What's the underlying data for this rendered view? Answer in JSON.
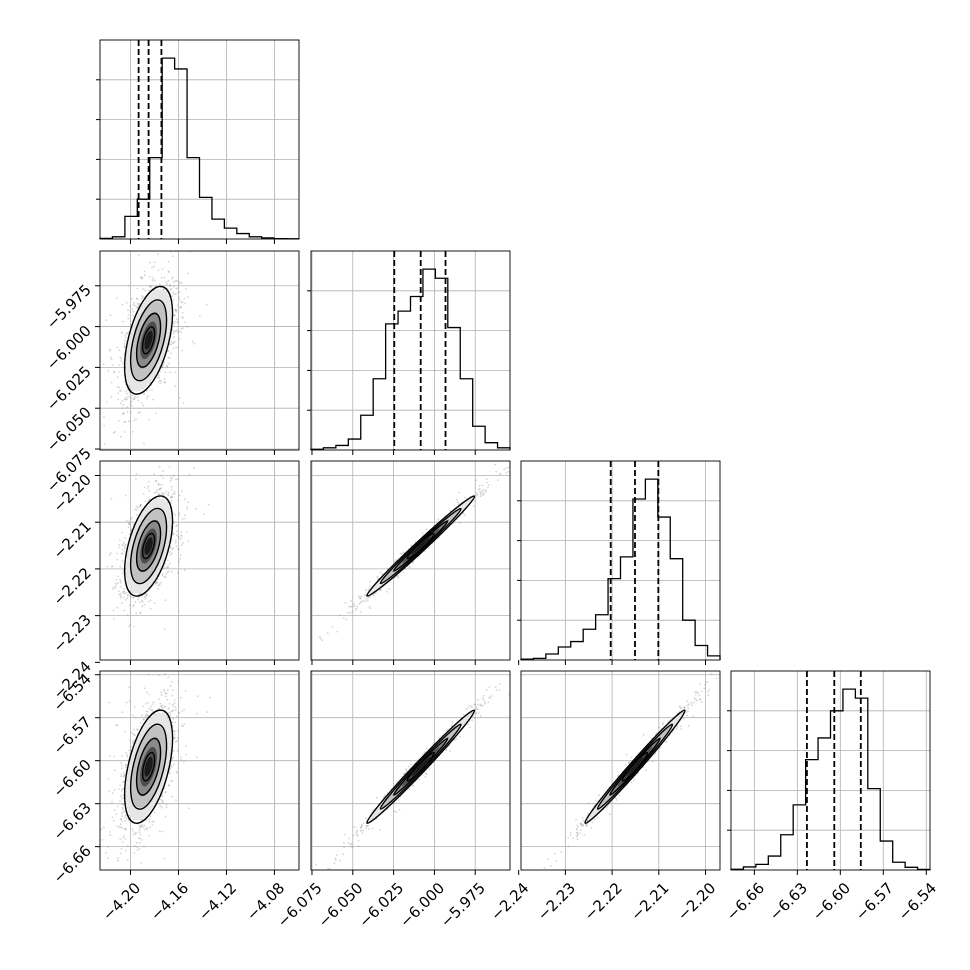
{
  "chart_data": {
    "type": "corner",
    "parameters": [
      {
        "range": [
          -4.2254,
          -4.0595
        ],
        "ticks": [
          -4.2,
          -4.16,
          -4.12,
          -4.08
        ],
        "tick_labels": [
          "−4.20",
          "−4.16",
          "−4.12",
          "−4.08"
        ],
        "quantiles": [
          -4.1932,
          -4.1849,
          -4.1742
        ]
      },
      {
        "range": [
          -6.0756,
          -5.9537
        ],
        "ticks": [
          -6.075,
          -6.05,
          -6.025,
          -6.0,
          -5.975
        ],
        "tick_labels": [
          "−6.075",
          "−6.050",
          "−6.025",
          "−6.000",
          "−5.975"
        ],
        "quantiles": [
          -6.0246,
          -6.0084,
          -5.9932
        ]
      },
      {
        "range": [
          -2.2395,
          -2.1969
        ],
        "ticks": [
          -2.24,
          -2.23,
          -2.22,
          -2.21,
          -2.2
        ],
        "tick_labels": [
          "−2.24",
          "−2.23",
          "−2.22",
          "−2.21",
          "−2.20"
        ],
        "quantiles": [
          -2.2203,
          -2.2151,
          -2.2101
        ]
      },
      {
        "range": [
          -6.6763,
          -6.5374
        ],
        "ticks": [
          -6.66,
          -6.63,
          -6.6,
          -6.57,
          -6.54
        ],
        "tick_labels": [
          "−6.66",
          "−6.63",
          "−6.60",
          "−6.57",
          "−6.54"
        ],
        "quantiles": [
          -6.6233,
          -6.6042,
          -6.5857
        ]
      }
    ],
    "histograms": [
      [
        0.3,
        1.2,
        12.5,
        22,
        45,
        100,
        94,
        45,
        23,
        11,
        6,
        3,
        1.2,
        0.6,
        0.2,
        0.1
      ],
      [
        0.4,
        1.2,
        2.5,
        6,
        19,
        39,
        69,
        76,
        84,
        99,
        94,
        67,
        39,
        13,
        4,
        1.2
      ],
      [
        0.5,
        0.9,
        3.3,
        7.2,
        10.2,
        17,
        25,
        45,
        57,
        89,
        100,
        79,
        56,
        22,
        8,
        2.3
      ],
      [
        0.4,
        1.7,
        3.1,
        7.7,
        19.5,
        36,
        61,
        73,
        88,
        100,
        95,
        45,
        16,
        4.3,
        1.5,
        0.3
      ]
    ],
    "correlations": {
      "1-0": 0.5,
      "2-0": 0.5,
      "2-1": 0.99,
      "3-0": 0.5,
      "3-1": 0.99,
      "3-2": 0.99
    },
    "sample_count": 5000,
    "grid": true,
    "colors": {
      "line": "#000000",
      "grid": "#b0b0b0",
      "points": "#888888"
    }
  }
}
